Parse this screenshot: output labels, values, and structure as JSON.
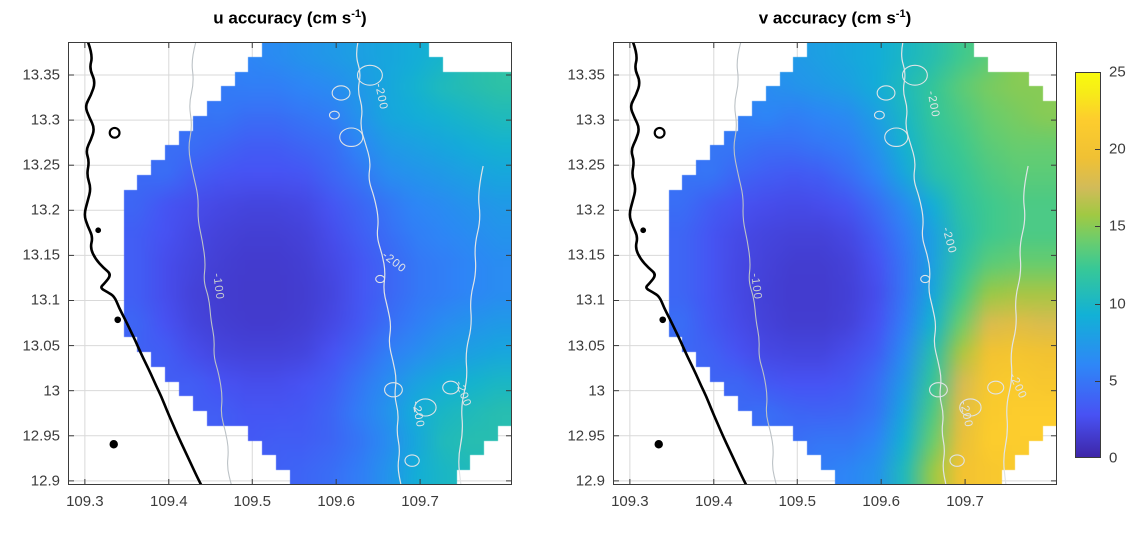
{
  "figure": {
    "background": "#ffffff"
  },
  "colormap": {
    "name": "parula",
    "anchors": [
      [
        0.0,
        "#3e26a8"
      ],
      [
        0.11,
        "#4852f4"
      ],
      [
        0.24,
        "#2e87f7"
      ],
      [
        0.37,
        "#12b1d6"
      ],
      [
        0.49,
        "#37c897"
      ],
      [
        0.56,
        "#69cd6f"
      ],
      [
        0.63,
        "#a0c943"
      ],
      [
        0.7,
        "#d1bb59"
      ],
      [
        0.78,
        "#f0c134"
      ],
      [
        0.88,
        "#fdcd2d"
      ],
      [
        0.95,
        "#f7ec18"
      ],
      [
        1.0,
        "#f9fb0e"
      ]
    ]
  },
  "chart_data": {
    "type": "heatmap",
    "value_range": [
      0,
      25
    ],
    "axes": {
      "x_ticks": [
        "109.3",
        "109.4",
        "109.5",
        "109.6",
        "109.7"
      ],
      "x_tick_f": [
        0.038,
        0.227,
        0.415,
        0.604,
        0.793
      ],
      "y_ticks": [
        "13.35",
        "13.3",
        "13.25",
        "13.2",
        "13.15",
        "13.1",
        "13.05",
        "13",
        "12.95",
        "12.9"
      ],
      "y_tick_g": [
        0.0745,
        0.1763,
        0.2781,
        0.3799,
        0.4817,
        0.5835,
        0.6853,
        0.7871,
        0.8889,
        0.9907
      ],
      "lon_range": [
        109.28,
        109.805
      ],
      "lat_range": [
        12.9,
        13.387
      ],
      "grid_color": "#d9d9d9"
    },
    "geo": {
      "coastline_color": "#000000",
      "coastline": [
        [
          0.045,
          0
        ],
        [
          0.056,
          0.03
        ],
        [
          0.048,
          0.06
        ],
        [
          0.062,
          0.09
        ],
        [
          0.052,
          0.12
        ],
        [
          0.038,
          0.145
        ],
        [
          0.048,
          0.17
        ],
        [
          0.06,
          0.195
        ],
        [
          0.052,
          0.22
        ],
        [
          0.04,
          0.245
        ],
        [
          0.048,
          0.27
        ],
        [
          0.042,
          0.3
        ],
        [
          0.052,
          0.33
        ],
        [
          0.044,
          0.36
        ],
        [
          0.036,
          0.39
        ],
        [
          0.044,
          0.415
        ],
        [
          0.056,
          0.44
        ],
        [
          0.05,
          0.465
        ],
        [
          0.062,
          0.49
        ],
        [
          0.08,
          0.51
        ],
        [
          0.098,
          0.525
        ],
        [
          0.082,
          0.545
        ],
        [
          0.072,
          0.555
        ],
        [
          0.09,
          0.565
        ],
        [
          0.105,
          0.575
        ],
        [
          0.115,
          0.6
        ],
        [
          0.128,
          0.625
        ],
        [
          0.14,
          0.65
        ],
        [
          0.152,
          0.675
        ],
        [
          0.163,
          0.7
        ],
        [
          0.175,
          0.725
        ],
        [
          0.187,
          0.75
        ],
        [
          0.198,
          0.775
        ],
        [
          0.21,
          0.8
        ],
        [
          0.222,
          0.83
        ],
        [
          0.235,
          0.86
        ],
        [
          0.248,
          0.89
        ],
        [
          0.262,
          0.92
        ],
        [
          0.276,
          0.95
        ],
        [
          0.29,
          0.98
        ],
        [
          0.3,
          1.0
        ]
      ],
      "islands": [
        {
          "f": 0.105,
          "g": 0.205,
          "r": 0.011,
          "filled": false
        },
        {
          "f": 0.068,
          "g": 0.425,
          "r": 0.004,
          "filled": true
        },
        {
          "f": 0.112,
          "g": 0.627,
          "r": 0.005,
          "filled": true
        },
        {
          "f": 0.103,
          "g": 0.908,
          "r": 0.007,
          "filled": true
        }
      ],
      "contour100_color": "#bcc2c6",
      "contour200_color": "#e0e4e6",
      "contour100": [
        [
          0.288,
          0
        ],
        [
          0.277,
          0.04
        ],
        [
          0.284,
          0.09
        ],
        [
          0.272,
          0.14
        ],
        [
          0.28,
          0.19
        ],
        [
          0.27,
          0.24
        ],
        [
          0.282,
          0.3
        ],
        [
          0.294,
          0.35
        ],
        [
          0.292,
          0.4
        ],
        [
          0.303,
          0.45
        ],
        [
          0.31,
          0.5
        ],
        [
          0.305,
          0.54
        ],
        [
          0.318,
          0.58
        ],
        [
          0.322,
          0.63
        ],
        [
          0.33,
          0.67
        ],
        [
          0.328,
          0.71
        ],
        [
          0.34,
          0.75
        ],
        [
          0.348,
          0.8
        ],
        [
          0.344,
          0.84
        ],
        [
          0.355,
          0.88
        ],
        [
          0.362,
          0.92
        ],
        [
          0.358,
          0.96
        ],
        [
          0.368,
          1.0
        ]
      ],
      "contour200": [
        [
          0.653,
          0
        ],
        [
          0.647,
          0.03
        ],
        [
          0.66,
          0.07
        ],
        [
          0.652,
          0.11
        ],
        [
          0.664,
          0.15
        ],
        [
          0.658,
          0.19
        ],
        [
          0.67,
          0.23
        ],
        [
          0.682,
          0.27
        ],
        [
          0.676,
          0.31
        ],
        [
          0.69,
          0.35
        ],
        [
          0.7,
          0.4
        ],
        [
          0.695,
          0.44
        ],
        [
          0.708,
          0.48
        ],
        [
          0.715,
          0.52
        ],
        [
          0.71,
          0.56
        ],
        [
          0.72,
          0.6
        ],
        [
          0.728,
          0.64
        ],
        [
          0.722,
          0.68
        ],
        [
          0.732,
          0.72
        ],
        [
          0.74,
          0.76
        ],
        [
          0.735,
          0.8
        ],
        [
          0.745,
          0.84
        ],
        [
          0.74,
          0.88
        ],
        [
          0.748,
          0.92
        ],
        [
          0.742,
          0.96
        ],
        [
          0.75,
          1.0
        ]
      ],
      "contour200_branch": [
        [
          0.935,
          0.28
        ],
        [
          0.922,
          0.34
        ],
        [
          0.93,
          0.4
        ],
        [
          0.915,
          0.46
        ],
        [
          0.92,
          0.52
        ],
        [
          0.905,
          0.58
        ],
        [
          0.91,
          0.64
        ],
        [
          0.895,
          0.7
        ],
        [
          0.9,
          0.76
        ],
        [
          0.885,
          0.82
        ],
        [
          0.89,
          0.88
        ],
        [
          0.878,
          0.94
        ],
        [
          0.885,
          1.0
        ]
      ],
      "contour200_loops": [
        [
          0.615,
          0.115,
          0.02
        ],
        [
          0.638,
          0.215,
          0.026
        ],
        [
          0.6,
          0.165,
          0.011
        ],
        [
          0.68,
          0.075,
          0.028
        ],
        [
          0.703,
          0.535,
          0.01
        ],
        [
          0.733,
          0.785,
          0.02
        ],
        [
          0.805,
          0.825,
          0.024
        ],
        [
          0.862,
          0.78,
          0.018
        ],
        [
          0.775,
          0.945,
          0.016
        ]
      ]
    },
    "panels": [
      {
        "id": "u",
        "title": {
          "pre": "u accuracy (cm s",
          "sup": "-1",
          "post": ")"
        },
        "contour_labels": [
          {
            "text": "-100",
            "f": 0.331,
            "g": 0.553,
            "rot": 83,
            "color": "#c6ccd0"
          },
          {
            "text": "-200",
            "f": 0.698,
            "g": 0.125,
            "rot": 78,
            "color": "#e0e4e6"
          },
          {
            "text": "-200",
            "f": 0.73,
            "g": 0.503,
            "rot": 38,
            "color": "#e0e4e6"
          },
          {
            "text": "-200",
            "f": 0.781,
            "g": 0.842,
            "rot": 80,
            "color": "#e0e4e6"
          },
          {
            "text": "-200",
            "f": 0.883,
            "g": 0.797,
            "rot": 70,
            "color": "#e0e4e6"
          }
        ],
        "values_grid": [
          [
            null,
            null,
            null,
            null,
            null,
            null,
            null,
            6.5,
            7,
            7.5,
            8,
            8.5,
            9,
            null,
            null,
            null
          ],
          [
            null,
            null,
            null,
            null,
            null,
            null,
            5.5,
            5.5,
            6,
            6.5,
            7.5,
            8.5,
            9.5,
            10.5,
            11,
            11.5
          ],
          [
            null,
            null,
            null,
            null,
            null,
            5,
            4.5,
            4.5,
            5,
            5.5,
            7,
            8.5,
            9,
            9.5,
            10,
            10.5
          ],
          [
            null,
            null,
            null,
            null,
            4.5,
            4,
            3.5,
            3.5,
            4,
            4.5,
            6,
            7.5,
            8,
            8.5,
            9,
            9.5
          ],
          [
            null,
            null,
            null,
            4.5,
            3.5,
            3,
            2.8,
            2.8,
            3,
            4,
            5,
            6.5,
            7,
            7.5,
            8,
            8.5
          ],
          [
            null,
            null,
            4,
            3,
            2.5,
            2.2,
            2,
            2,
            2.2,
            3,
            4,
            5,
            6,
            6.5,
            7,
            7.5
          ],
          [
            null,
            null,
            3.5,
            2.8,
            2.2,
            1.8,
            1.6,
            1.6,
            1.8,
            2.5,
            3.5,
            4.5,
            5.5,
            6,
            6.5,
            7
          ],
          [
            null,
            null,
            3.5,
            2.5,
            2,
            1.6,
            1.4,
            1.4,
            1.6,
            2.2,
            3,
            4,
            5,
            5.5,
            6,
            6.5
          ],
          [
            null,
            null,
            3.5,
            2.5,
            1.8,
            1.5,
            1.3,
            1.3,
            1.5,
            2,
            3,
            4,
            5,
            5.5,
            6,
            6.5
          ],
          [
            null,
            null,
            4,
            2.8,
            2,
            1.6,
            1.4,
            1.4,
            1.6,
            2.2,
            3.2,
            4.5,
            5.5,
            6.5,
            7,
            7.5
          ],
          [
            null,
            null,
            null,
            3.5,
            2.5,
            2,
            1.8,
            1.8,
            2,
            2.8,
            4,
            5.5,
            6.5,
            7.5,
            8,
            8.5
          ],
          [
            null,
            null,
            null,
            null,
            3.5,
            2.8,
            2.5,
            2.5,
            2.8,
            3.5,
            5,
            6.5,
            8,
            9,
            9.5,
            10
          ],
          [
            null,
            null,
            null,
            null,
            null,
            3.5,
            3,
            3,
            3.2,
            4,
            5.5,
            7,
            9,
            10,
            10.5,
            11
          ],
          [
            null,
            null,
            null,
            null,
            null,
            null,
            null,
            3.5,
            3.5,
            4,
            5,
            6.5,
            8.5,
            10.5,
            11,
            null
          ],
          [
            null,
            null,
            null,
            null,
            null,
            null,
            null,
            null,
            4,
            4.5,
            5.5,
            7,
            9,
            10,
            null,
            null
          ]
        ]
      },
      {
        "id": "v",
        "title": {
          "pre": "v accuracy (cm s",
          "sup": "-1",
          "post": ")"
        },
        "contour_labels": [
          {
            "text": "-100",
            "f": 0.315,
            "g": 0.553,
            "rot": 83,
            "color": "#c6ccd0"
          },
          {
            "text": "-200",
            "f": 0.714,
            "g": 0.142,
            "rot": 80,
            "color": "#e0e4e6"
          },
          {
            "text": "-200",
            "f": 0.75,
            "g": 0.45,
            "rot": 75,
            "color": "#e0e4e6"
          },
          {
            "text": "-200",
            "f": 0.788,
            "g": 0.842,
            "rot": 78,
            "color": "#e0e4e6"
          },
          {
            "text": "-200",
            "f": 0.905,
            "g": 0.78,
            "rot": 65,
            "color": "#e0e4e6"
          }
        ],
        "values_grid": [
          [
            null,
            null,
            null,
            null,
            null,
            null,
            null,
            8,
            8.5,
            9,
            10,
            11,
            12.5,
            null,
            null,
            null
          ],
          [
            null,
            null,
            null,
            null,
            null,
            null,
            7,
            7.5,
            8,
            9,
            10.5,
            12,
            13.5,
            14.5,
            15,
            null
          ],
          [
            null,
            null,
            null,
            null,
            null,
            6,
            5.5,
            6,
            6.5,
            8,
            10,
            12,
            13,
            14,
            14.5,
            15
          ],
          [
            null,
            null,
            null,
            null,
            5,
            4.5,
            4.5,
            5,
            5.5,
            7,
            9.5,
            11.5,
            12.5,
            13.5,
            14,
            14
          ],
          [
            null,
            null,
            null,
            5,
            4,
            3.5,
            3.2,
            3.5,
            4.5,
            6,
            8.5,
            11,
            12,
            13,
            13.5,
            13.5
          ],
          [
            null,
            null,
            4.5,
            3.5,
            2.8,
            2.5,
            2.3,
            2.5,
            3,
            4.5,
            6.5,
            9,
            11.5,
            12.5,
            13,
            13
          ],
          [
            null,
            null,
            4,
            3,
            2.3,
            2,
            1.8,
            1.8,
            2.2,
            3.5,
            5.5,
            8,
            11,
            12.5,
            13,
            13
          ],
          [
            null,
            null,
            4,
            3,
            2.2,
            1.8,
            1.5,
            1.5,
            1.8,
            2.8,
            5,
            8,
            11.5,
            13.5,
            14,
            14
          ],
          [
            null,
            null,
            4,
            3,
            2.2,
            1.7,
            1.4,
            1.4,
            1.7,
            2.5,
            5,
            8.5,
            12.5,
            15.5,
            16,
            16
          ],
          [
            null,
            null,
            4.5,
            3.2,
            2.4,
            1.8,
            1.5,
            1.5,
            1.8,
            2.8,
            5.5,
            9.5,
            14,
            18,
            18.5,
            18
          ],
          [
            null,
            null,
            null,
            3.8,
            2.8,
            2.2,
            2,
            2,
            2.5,
            3.5,
            6.5,
            11,
            16,
            20,
            20.5,
            20
          ],
          [
            null,
            null,
            null,
            null,
            4,
            3.2,
            2.8,
            2.8,
            3.2,
            4.5,
            7.5,
            12,
            17.5,
            21,
            21.5,
            21
          ],
          [
            null,
            null,
            null,
            null,
            null,
            4.5,
            4,
            3.8,
            4,
            5,
            8.5,
            13,
            18.5,
            21.5,
            22,
            22
          ],
          [
            null,
            null,
            null,
            null,
            null,
            null,
            null,
            5,
            5,
            6,
            9.5,
            14,
            19,
            22,
            22,
            null
          ],
          [
            null,
            null,
            null,
            null,
            null,
            null,
            null,
            null,
            6,
            7,
            10.5,
            15.5,
            20,
            21,
            null,
            null
          ]
        ]
      }
    ],
    "colorbar": {
      "min": 0,
      "max": 25,
      "ticks": [
        "0",
        "5",
        "10",
        "15",
        "20",
        "25"
      ],
      "tick_values": [
        0,
        5,
        10,
        15,
        20,
        25
      ]
    }
  }
}
